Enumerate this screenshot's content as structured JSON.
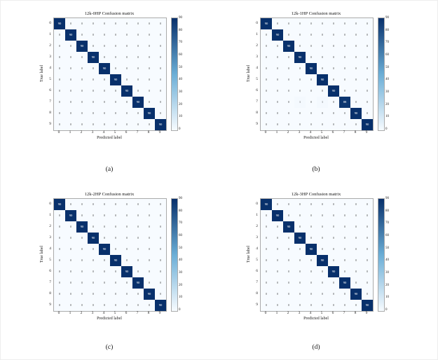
{
  "figure": {
    "background": "#ffffff",
    "xlabel": "Predicted label",
    "ylabel": "True label"
  },
  "colors": {
    "scale": [
      "#f7fbff",
      "#6baed6",
      "#08306b"
    ],
    "high_text": "#ffffff",
    "low_text": "#555555"
  },
  "colorbar": {
    "min": 0,
    "max": 90,
    "ticks": [
      "90",
      "80",
      "70",
      "60",
      "50",
      "40",
      "30",
      "20",
      "10",
      "0"
    ]
  },
  "chart_data": [
    {
      "type": "heatmap",
      "title": "12k-0HP Confusion matrix",
      "caption": "(a)",
      "xlabel": "Predicted label",
      "ylabel": "True label",
      "tick_labels": [
        "0",
        "1",
        "2",
        "3",
        "4",
        "5",
        "6",
        "7",
        "8",
        "9"
      ],
      "vmin": 0,
      "vmax": 90,
      "matrix": [
        [
          90,
          0,
          0,
          0,
          0,
          0,
          0,
          0,
          0,
          0
        ],
        [
          0,
          90,
          0,
          0,
          0,
          0,
          0,
          0,
          0,
          0
        ],
        [
          0,
          0,
          90,
          0,
          0,
          0,
          0,
          0,
          0,
          0
        ],
        [
          0,
          0,
          0,
          90,
          0,
          0,
          0,
          0,
          0,
          0
        ],
        [
          0,
          0,
          0,
          0,
          90,
          0,
          0,
          0,
          0,
          0
        ],
        [
          0,
          0,
          0,
          0,
          0,
          90,
          0,
          0,
          0,
          0
        ],
        [
          0,
          0,
          0,
          0,
          0,
          0,
          90,
          0,
          0,
          0
        ],
        [
          0,
          0,
          0,
          0,
          0,
          0,
          0,
          90,
          0,
          0
        ],
        [
          0,
          0,
          0,
          0,
          0,
          0,
          0,
          0,
          90,
          0
        ],
        [
          0,
          0,
          0,
          0,
          0,
          0,
          0,
          0,
          0,
          90
        ]
      ]
    },
    {
      "type": "heatmap",
      "title": "12k-1HP Confusion matrix",
      "caption": "(b)",
      "xlabel": "Predicted label",
      "ylabel": "True label",
      "tick_labels": [
        "0",
        "1",
        "2",
        "3",
        "4",
        "5",
        "6",
        "7",
        "8",
        "9"
      ],
      "vmin": 0,
      "vmax": 90,
      "matrix": [
        [
          90,
          0,
          0,
          0,
          0,
          0,
          0,
          0,
          0,
          0
        ],
        [
          0,
          90,
          0,
          0,
          0,
          0,
          0,
          0,
          0,
          0
        ],
        [
          0,
          0,
          90,
          0,
          0,
          0,
          0,
          0,
          0,
          0
        ],
        [
          0,
          0,
          0,
          90,
          0,
          0,
          0,
          0,
          0,
          0
        ],
        [
          0,
          0,
          0,
          0,
          90,
          0,
          0,
          0,
          0,
          0
        ],
        [
          0,
          0,
          0,
          0,
          0,
          90,
          0,
          0,
          0,
          0
        ],
        [
          0,
          0,
          0,
          0,
          0,
          0,
          90,
          0,
          0,
          0
        ],
        [
          0,
          0,
          0,
          1,
          0,
          1,
          0,
          88,
          0,
          0
        ],
        [
          0,
          0,
          0,
          0,
          0,
          0,
          0,
          0,
          90,
          0
        ],
        [
          0,
          0,
          0,
          0,
          0,
          0,
          0,
          0,
          0,
          90
        ]
      ]
    },
    {
      "type": "heatmap",
      "title": "12k-2HP Confusion matrix",
      "caption": "(c)",
      "xlabel": "Predicted label",
      "ylabel": "True label",
      "tick_labels": [
        "0",
        "1",
        "2",
        "3",
        "4",
        "5",
        "6",
        "7",
        "8",
        "9"
      ],
      "vmin": 0,
      "vmax": 90,
      "matrix": [
        [
          90,
          0,
          0,
          0,
          0,
          0,
          0,
          0,
          0,
          0
        ],
        [
          0,
          90,
          0,
          0,
          0,
          0,
          0,
          0,
          0,
          0
        ],
        [
          0,
          0,
          90,
          0,
          0,
          0,
          0,
          0,
          0,
          0
        ],
        [
          0,
          0,
          0,
          90,
          0,
          0,
          0,
          0,
          0,
          0
        ],
        [
          0,
          0,
          0,
          0,
          90,
          0,
          0,
          0,
          0,
          0
        ],
        [
          0,
          0,
          0,
          0,
          0,
          90,
          0,
          0,
          0,
          0
        ],
        [
          0,
          0,
          0,
          0,
          0,
          0,
          90,
          0,
          0,
          0
        ],
        [
          0,
          0,
          0,
          0,
          0,
          0,
          0,
          90,
          0,
          0
        ],
        [
          0,
          0,
          0,
          0,
          0,
          0,
          0,
          0,
          90,
          0
        ],
        [
          0,
          0,
          0,
          0,
          0,
          0,
          0,
          0,
          0,
          90
        ]
      ]
    },
    {
      "type": "heatmap",
      "title": "12k-3HP Confusion matrix",
      "caption": "(d)",
      "xlabel": "Predicted label",
      "ylabel": "True label",
      "tick_labels": [
        "0",
        "1",
        "2",
        "3",
        "4",
        "5",
        "6",
        "7",
        "8",
        "9"
      ],
      "vmin": 0,
      "vmax": 90,
      "matrix": [
        [
          90,
          0,
          0,
          0,
          0,
          0,
          0,
          0,
          0,
          0
        ],
        [
          0,
          90,
          0,
          0,
          0,
          0,
          0,
          0,
          0,
          0
        ],
        [
          0,
          0,
          90,
          0,
          0,
          0,
          0,
          0,
          0,
          0
        ],
        [
          0,
          0,
          0,
          90,
          0,
          0,
          0,
          0,
          0,
          0
        ],
        [
          0,
          0,
          0,
          0,
          90,
          0,
          0,
          0,
          0,
          0
        ],
        [
          0,
          0,
          0,
          0,
          0,
          90,
          0,
          0,
          0,
          0
        ],
        [
          0,
          0,
          0,
          0,
          0,
          0,
          90,
          0,
          0,
          0
        ],
        [
          0,
          0,
          0,
          0,
          0,
          0,
          0,
          90,
          0,
          0
        ],
        [
          0,
          0,
          0,
          0,
          0,
          0,
          0,
          0,
          90,
          0
        ],
        [
          0,
          0,
          0,
          0,
          0,
          0,
          0,
          0,
          0,
          90
        ]
      ]
    }
  ]
}
